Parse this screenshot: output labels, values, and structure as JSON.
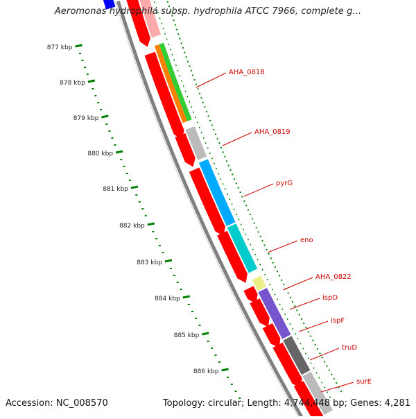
{
  "title": "Aeromonas hydrophila subsp. hydrophila ATCC 7966, complete g...",
  "footer": {
    "accession": "Accession: NC_008570",
    "summary": "Topology: circular; Length: 4,744,448 bp; Genes: 4,281"
  },
  "scale_ticks": [
    "877 kbp",
    "878 kbp",
    "879 kbp",
    "880 kbp",
    "881 kbp",
    "882 kbp",
    "883 kbp",
    "884 kbp",
    "885 kbp",
    "886 kbp"
  ],
  "gene_labels": [
    "AHA_0818",
    "AHA_0819",
    "pyrG",
    "eno",
    "AHA_0822",
    "ispD",
    "ispF",
    "truD",
    "surE"
  ],
  "colors": {
    "cds": "#ff0000",
    "backbone": "#808080",
    "tick": "#008000",
    "label": "#cc0000",
    "lanes": [
      "#ff8000",
      "#33cc33",
      "#bbbbbb",
      "#00aaff",
      "#00cccc",
      "#eeee88",
      "#7755cc",
      "#666666"
    ]
  }
}
